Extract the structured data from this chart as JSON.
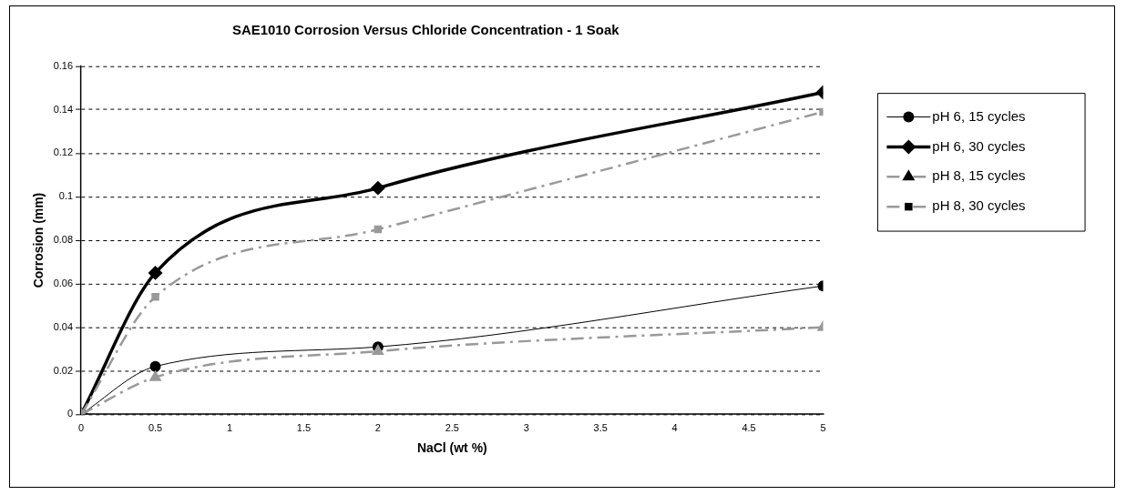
{
  "chart_data": {
    "type": "line",
    "title": "SAE1010 Corrosion Versus Chloride Concentration - 1 Soak",
    "xlabel": "NaCl (wt %)",
    "ylabel": "Corrosion (mm)",
    "x": [
      0,
      0.5,
      2,
      5
    ],
    "series": [
      {
        "name": "pH 6, 15 cycles",
        "color": "#000000",
        "marker": "circle",
        "line_style": "solid",
        "values": [
          0,
          0.022,
          0.031,
          0.059
        ]
      },
      {
        "name": "pH 6, 30 cycles",
        "color": "#000000",
        "marker": "diamond",
        "line_style": "solid",
        "values": [
          0,
          0.065,
          0.104,
          0.148
        ]
      },
      {
        "name": "pH 8, 15 cycles",
        "color": "#999999",
        "marker": "triangle",
        "line_style": "dashed",
        "values": [
          0,
          0.017,
          0.029,
          0.04
        ]
      },
      {
        "name": "pH 8, 30 cycles",
        "color": "#999999",
        "marker": "square",
        "line_style": "dashed",
        "values": [
          0,
          0.054,
          0.085,
          0.139
        ]
      }
    ],
    "xlim": [
      0,
      5
    ],
    "xticks": [
      0,
      0.5,
      1,
      1.5,
      2,
      2.5,
      3,
      3.5,
      4,
      4.5,
      5
    ],
    "ylim": [
      0,
      0.16
    ],
    "yticks": [
      0,
      0.02,
      0.04,
      0.06,
      0.08,
      0.1,
      0.12,
      0.14,
      0.16
    ],
    "grid": "y",
    "legend": "right"
  }
}
